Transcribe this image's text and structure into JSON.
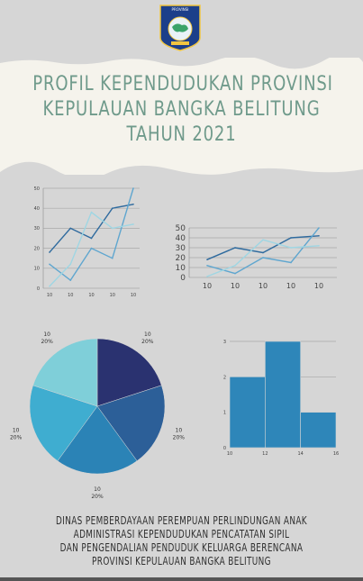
{
  "header": {
    "logo_text": "PROVINSI KEPULAUAN BANGKA BELITUNG",
    "title_lines": [
      "PROFIL KEPENDUDUKAN PROVINSI",
      "KEPULAUAN BANGKA BELITUNG",
      "TAHUN 2021"
    ]
  },
  "colors": {
    "title": "#6f9a8b",
    "banner": "#f5f3ec",
    "background": "#d6d6d6",
    "line_dark": "#2e6a9e",
    "line_mid": "#5fa6cf",
    "line_light": "#9fd6e3"
  },
  "chart_data": [
    {
      "type": "line",
      "x": [
        "10",
        "10",
        "10",
        "10",
        "10"
      ],
      "series": [
        {
          "values": [
            18,
            30,
            25,
            40,
            42
          ]
        },
        {
          "values": [
            12,
            4,
            20,
            15,
            50
          ]
        },
        {
          "values": [
            1,
            12,
            38,
            30,
            32
          ]
        }
      ],
      "ylim": [
        0,
        50
      ],
      "yticks": [
        0,
        10,
        20,
        30,
        40,
        50
      ],
      "grid": true
    },
    {
      "type": "line",
      "x": [
        "10",
        "10",
        "10",
        "10",
        "10"
      ],
      "series": [
        {
          "values": [
            18,
            30,
            25,
            40,
            42
          ]
        },
        {
          "values": [
            12,
            4,
            20,
            15,
            50
          ]
        },
        {
          "values": [
            1,
            12,
            38,
            30,
            32
          ]
        }
      ],
      "ylim": [
        0,
        50
      ],
      "yticks": [
        0,
        10,
        20,
        30,
        40,
        50
      ],
      "grid": true
    },
    {
      "type": "pie",
      "slices": [
        {
          "label": "10",
          "pct": "20%",
          "value": 20,
          "color": "#2a3270"
        },
        {
          "label": "10",
          "pct": "20%",
          "value": 20,
          "color": "#2c5f98"
        },
        {
          "label": "10",
          "pct": "20%",
          "value": 20,
          "color": "#2b83b6"
        },
        {
          "label": "10",
          "pct": "20%",
          "value": 20,
          "color": "#3fadd0"
        },
        {
          "label": "10",
          "pct": "20%",
          "value": 20,
          "color": "#7fcfd9"
        }
      ]
    },
    {
      "type": "bar",
      "bins": [
        {
          "from": 10,
          "to": 12,
          "value": 2
        },
        {
          "from": 12,
          "to": 14,
          "value": 3
        },
        {
          "from": 14,
          "to": 16,
          "value": 1
        }
      ],
      "xticks": [
        10,
        12,
        14,
        16
      ],
      "yticks": [
        0,
        1,
        2,
        3
      ],
      "ylim": [
        0,
        3
      ],
      "color": "#2e86b9",
      "grid": true
    }
  ],
  "footer": {
    "lines": [
      "DINAS PEMBERDAYAAN PEREMPUAN PERLINDUNGAN ANAK",
      "ADMINISTRASI KEPENDUDUKAN PENCATATAN SIPIL",
      "DAN PENGENDALIAN PENDUDUK KELUARGA BERENCANA",
      "PROVINSI KEPULAUAN BANGKA BELITUNG"
    ]
  }
}
